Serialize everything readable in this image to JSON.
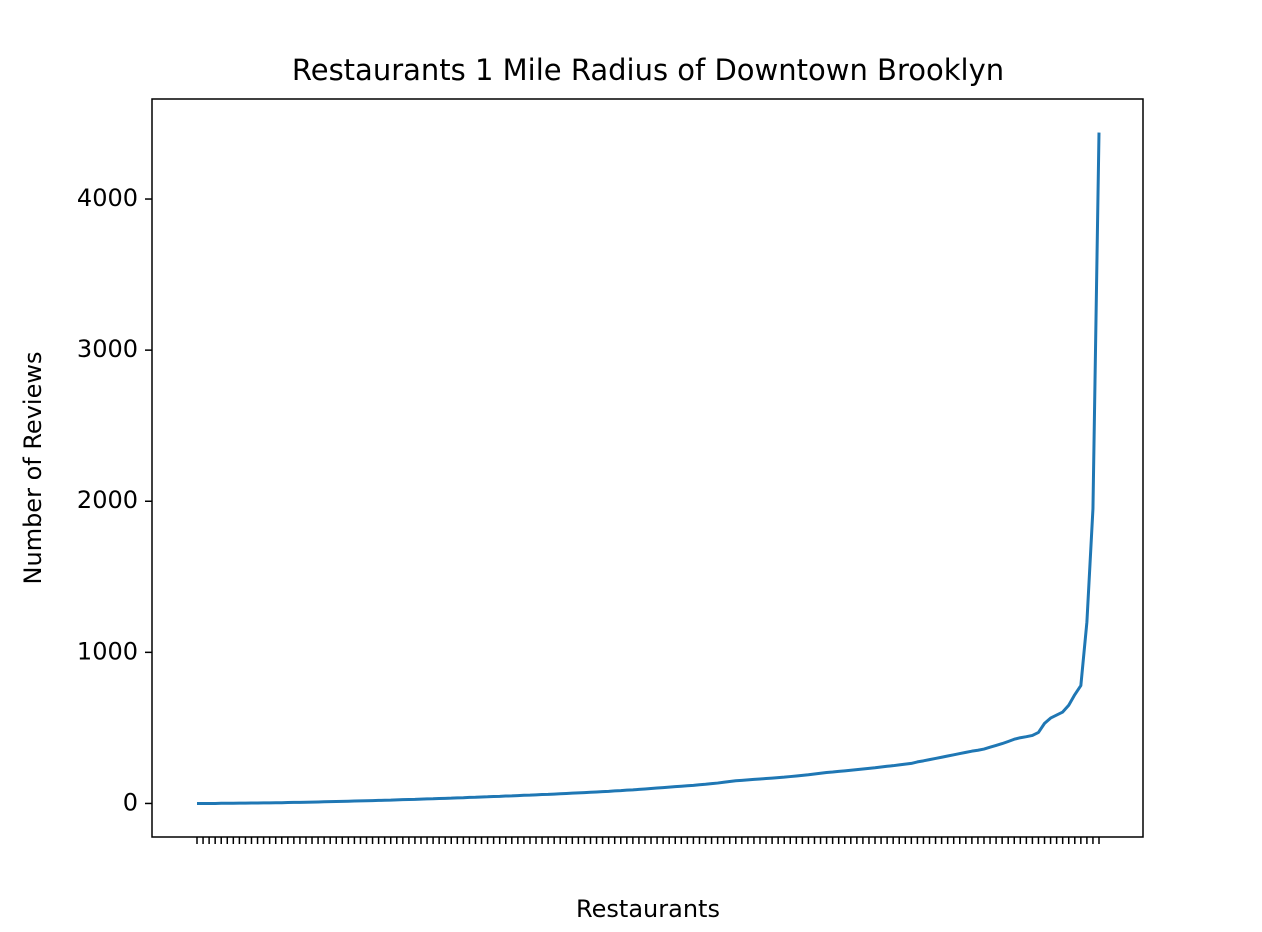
{
  "chart_data": {
    "type": "line",
    "title": "Restaurants 1 Mile Radius of Downtown Brooklyn",
    "x_label": "Restaurants",
    "y_label": "Number of Reviews",
    "color": "#1f77b4",
    "categories": [
      null,
      null,
      null,
      null,
      null,
      null,
      null,
      null,
      null,
      null,
      null,
      null,
      null,
      null,
      null,
      null,
      null,
      null,
      null,
      null,
      null,
      null,
      null,
      null,
      null,
      null,
      null,
      null,
      null,
      null,
      null,
      null,
      null,
      null,
      null,
      null,
      null,
      null,
      null,
      null,
      null,
      null,
      null,
      null,
      null,
      null,
      null,
      null,
      null,
      null,
      null,
      null,
      null,
      null,
      null,
      null,
      null,
      null,
      null,
      null,
      null,
      null,
      null,
      null,
      null,
      null,
      null,
      null,
      null,
      null,
      null,
      null,
      null,
      null,
      null,
      null,
      null,
      null,
      null,
      null,
      null,
      null,
      null,
      null,
      null,
      null,
      null,
      null,
      null,
      null,
      null,
      null,
      null,
      null,
      null,
      null,
      null,
      null,
      null,
      null,
      null,
      null,
      null,
      null,
      null,
      null,
      null,
      null,
      null,
      null,
      null,
      null,
      null,
      null,
      null,
      null,
      null,
      null,
      null,
      null,
      null,
      null,
      null,
      null,
      null,
      null,
      null,
      null,
      null,
      null,
      null,
      null,
      null,
      null,
      null,
      null,
      null,
      null,
      null,
      null,
      null,
      null,
      null,
      null,
      null,
      null,
      null,
      null,
      null,
      null
    ],
    "values": [
      0,
      0,
      0,
      0,
      1,
      1,
      1,
      2,
      2,
      3,
      3,
      4,
      4,
      5,
      5,
      6,
      7,
      7,
      8,
      9,
      10,
      11,
      12,
      13,
      14,
      15,
      16,
      17,
      18,
      19,
      20,
      21,
      22,
      24,
      25,
      26,
      27,
      29,
      30,
      31,
      33,
      34,
      35,
      37,
      38,
      40,
      41,
      43,
      44,
      46,
      47,
      49,
      50,
      52,
      54,
      55,
      57,
      59,
      60,
      62,
      64,
      66,
      68,
      70,
      72,
      74,
      76,
      78,
      80,
      83,
      85,
      88,
      90,
      93,
      96,
      99,
      102,
      105,
      108,
      111,
      114,
      117,
      120,
      124,
      127,
      131,
      135,
      140,
      145,
      150,
      153,
      156,
      159,
      162,
      165,
      168,
      171,
      174,
      178,
      182,
      186,
      190,
      195,
      200,
      205,
      208,
      212,
      216,
      220,
      224,
      228,
      232,
      236,
      241,
      246,
      250,
      255,
      260,
      265,
      275,
      282,
      290,
      298,
      306,
      314,
      322,
      330,
      338,
      346,
      352,
      360,
      372,
      384,
      396,
      410,
      425,
      435,
      442,
      450,
      470,
      530,
      565,
      585,
      605,
      650,
      720,
      780,
      1200,
      1950,
      4440
    ],
    "ylim": [
      -222,
      4662
    ],
    "yticks": [
      0,
      1000,
      2000,
      3000,
      4000
    ]
  }
}
